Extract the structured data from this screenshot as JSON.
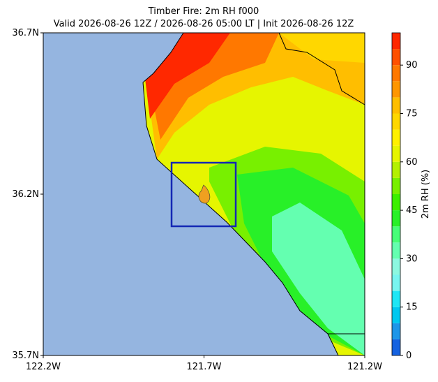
{
  "chart_data": {
    "type": "contour-map",
    "title": "Timber Fire: 2m RH f000",
    "subtitle": "Valid 2026-08-26 12Z / 2026-08-26 05:00 LT | Init 2026-08-26 12Z",
    "xlim": [
      -122.2,
      -121.2
    ],
    "ylim": [
      35.7,
      36.7
    ],
    "xticks": [
      {
        "value": -122.2,
        "label": "122.2W"
      },
      {
        "value": -121.7,
        "label": "121.7W"
      },
      {
        "value": -121.2,
        "label": "121.2W"
      }
    ],
    "yticks": [
      {
        "value": 35.7,
        "label": "35.7N"
      },
      {
        "value": 36.2,
        "label": "36.2N"
      },
      {
        "value": 36.7,
        "label": "36.7N"
      }
    ],
    "colorbar": {
      "label": "2m RH (%)",
      "lim": [
        0,
        100
      ],
      "ticks": [
        0,
        15,
        30,
        45,
        60,
        75,
        90
      ],
      "levels": [
        0,
        5,
        10,
        15,
        20,
        25,
        30,
        35,
        40,
        45,
        50,
        55,
        60,
        65,
        70,
        75,
        80,
        85,
        90,
        95,
        100
      ],
      "colors": [
        "#1562e0",
        "#1e96e8",
        "#00c8f0",
        "#1ee6f5",
        "#78f5f0",
        "#8cf8e0",
        "#64ffb0",
        "#46ff78",
        "#28f028",
        "#3cf000",
        "#78f000",
        "#b4f000",
        "#e6f500",
        "#fff000",
        "#ffd700",
        "#ffbe00",
        "#ff9600",
        "#ff7800",
        "#ff5000",
        "#ff2800"
      ]
    }
  }
}
